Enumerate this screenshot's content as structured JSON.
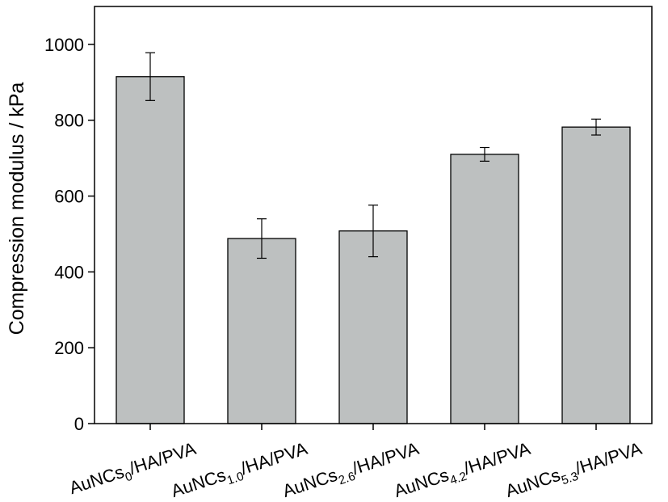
{
  "chart_data": {
    "type": "bar",
    "title": "",
    "xlabel": "",
    "ylabel": "Compression modulus / kPa",
    "ylim": [
      0,
      1100
    ],
    "yticks": [
      0,
      200,
      400,
      600,
      800,
      1000
    ],
    "grid": false,
    "categories": [
      {
        "main": "AuNCs",
        "sub": "0",
        "suffix": "/HA/PVA"
      },
      {
        "main": "AuNCs",
        "sub": "1.0",
        "suffix": "/HA/PVA"
      },
      {
        "main": "AuNCs",
        "sub": "2.6",
        "suffix": "/HA/PVA"
      },
      {
        "main": "AuNCs",
        "sub": "4.2",
        "suffix": "/HA/PVA"
      },
      {
        "main": "AuNCs",
        "sub": "5.3",
        "suffix": "/HA/PVA"
      }
    ],
    "values": [
      915,
      488,
      508,
      710,
      782
    ],
    "errors": [
      63,
      52,
      68,
      18,
      21
    ],
    "bar_color": "#bdc0c0"
  }
}
